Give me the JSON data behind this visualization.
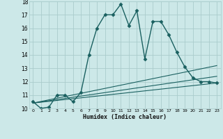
{
  "xlabel": "Humidex (Indice chaleur)",
  "bg_color": "#cce8e8",
  "grid_color": "#aacccc",
  "line_color": "#1a6060",
  "xlim": [
    -0.5,
    23.5
  ],
  "ylim": [
    10,
    18
  ],
  "xticks": [
    0,
    1,
    2,
    3,
    4,
    5,
    6,
    7,
    8,
    9,
    10,
    11,
    12,
    13,
    14,
    15,
    16,
    17,
    18,
    19,
    20,
    21,
    22,
    23
  ],
  "yticks": [
    10,
    11,
    12,
    13,
    14,
    15,
    16,
    17,
    18
  ],
  "series": [
    {
      "x": [
        0,
        1,
        2,
        3,
        4,
        5,
        6,
        7,
        8,
        9,
        10,
        11,
        12,
        13,
        14,
        15,
        16,
        17,
        18,
        19,
        20,
        21,
        22,
        23
      ],
      "y": [
        10.5,
        10.0,
        10.1,
        11.0,
        11.0,
        10.5,
        11.2,
        14.0,
        16.0,
        17.0,
        17.0,
        17.8,
        16.2,
        17.3,
        13.7,
        16.5,
        16.5,
        15.5,
        14.2,
        13.1,
        12.3,
        12.0,
        12.0,
        11.9
      ],
      "marker": "D",
      "markersize": 2.5,
      "linewidth": 1.0
    },
    {
      "x": [
        0,
        23
      ],
      "y": [
        10.4,
        13.2
      ],
      "marker": null,
      "linewidth": 0.8
    },
    {
      "x": [
        0,
        23
      ],
      "y": [
        10.4,
        12.4
      ],
      "marker": null,
      "linewidth": 0.8
    },
    {
      "x": [
        0,
        23
      ],
      "y": [
        10.4,
        11.9
      ],
      "marker": null,
      "linewidth": 0.8
    }
  ]
}
